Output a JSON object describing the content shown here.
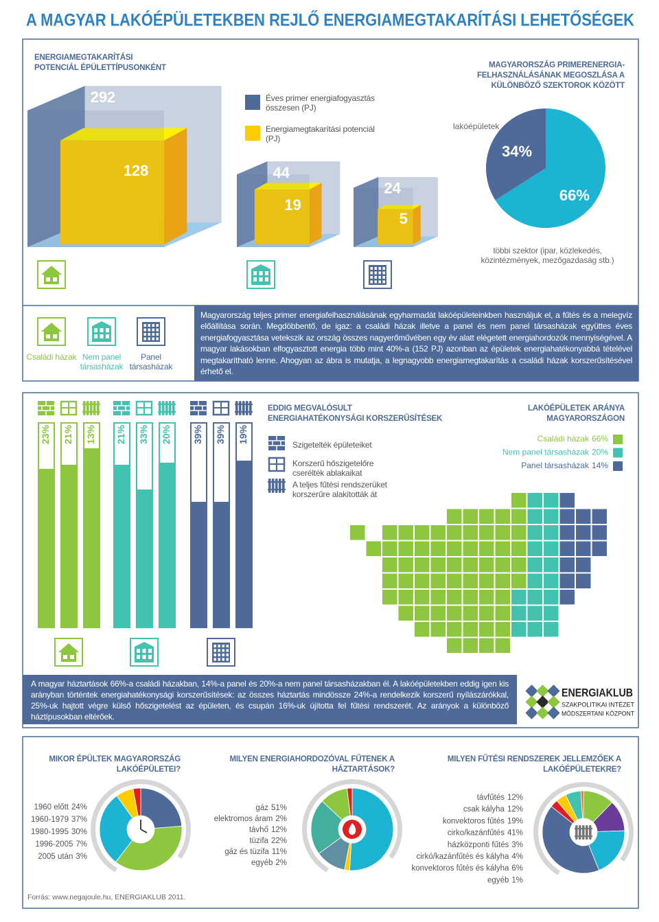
{
  "title": "A MAGYAR LAKÓÉPÜLETEKBEN REJLŐ ENERGIAMEGTAKARÍTÁSI LEHETŐSÉGEK",
  "paragraphs": [
    "Magyarország teljes primer energiafelhasználásának egyharmadát lakóépületeinkben használjuk el, a fűtés és a melegvíz előállítása során. Megdöbbentő, de igaz: a családi házak illetve a panel és nem panel társasházak együttes éves energiafogyasztása vetekszik az ország összes nagyerőművében egy év alatt elégetett energiahordozók mennyiségével. A magyar lakásokban elfogyasztott energia több mint 40%-a (152 PJ) azonban az épületek energiahatékonyabbá tételével megtakarítható lenne. Ahogyan az ábra is mutatja, a legnagyobb energiamegtakarítás a családi házak korszerűsítésével érhető el.",
    "A magyar háztartások 66%-a családi házakban, 14%-a panel és 20%-a nem panel társasházakban él. A lakóépületekben eddig igen kis arányban történtek energiahatékonysági korszerűsítések: az összes háztartás mindössze 24%-a rendelkezik korszerű nyílászárókkal, 25%-uk hajtott végre külső hőszigetelést az épületen, és csupán 16%-uk újította fel fűtési rendszerét. Az arányok a különböző háztípusokban eltérőek."
  ],
  "logo": {
    "name": "ENERGIAKLUB",
    "lines": [
      "SZAKPOLITIKAI INTÉZET",
      "MÓDSZERTANI KÖZPONT"
    ]
  },
  "source": "Forrás: www.negajoule.hu, ENERGIAKLUB 2011.",
  "chart_data": [
    {
      "type": "cube",
      "title": "ENERGIAMEGTAKARÍTÁSI POTENCIÁL ÉPÜLETTÍPUSONKÉNT",
      "categories": [
        "Családi házak",
        "Nem panel társasházak",
        "Panel társasházak"
      ],
      "category_colors": [
        "#8dc63f",
        "#43c2b0",
        "#4d6a99"
      ],
      "series": [
        {
          "name": "Éves primer energiafogyasztás összesen (PJ)",
          "color": "#4d6a99",
          "values": [
            292,
            44,
            24
          ]
        },
        {
          "name": "Energiamegtakarítási potenciál (PJ)",
          "color": "#ffcc00",
          "values": [
            128,
            19,
            5
          ]
        }
      ]
    },
    {
      "type": "pie",
      "title": "MAGYARORSZÁG PRIMERENERGIA-FELHASZNÁLÁSÁNAK MEGOSZLÁSA A KÜLÖNBÖZŐ SZEKTOROK KÖZÖTT",
      "categories": [
        "lakóépületek",
        "többi szektor (ipar, közlekedés, közintézmények, mezőgazdaság stb.)"
      ],
      "values": [
        34,
        66
      ],
      "value_labels": [
        "34%",
        "66%"
      ],
      "colors": [
        "#4d6a99",
        "#1db4d4"
      ]
    },
    {
      "type": "bar",
      "title": "EDDIG MEGVALÓSULT ENERGIAHATÉKONYSÁGI KORSZERŰSÍTÉSEK",
      "categories": [
        "Szigetelték épületeiket",
        "Korszerű hőszigetelőre cserélték ablakaikat",
        "A teljes fűtési rendszerüket korszerűre alakították át"
      ],
      "series": [
        {
          "color": "#8dc63f",
          "values": [
            23,
            21,
            13
          ],
          "value_labels": [
            "23%",
            "21%",
            "13%"
          ]
        },
        {
          "color": "#43c2b0",
          "values": [
            21,
            33,
            20
          ],
          "value_labels": [
            "21%",
            "33%",
            "20%"
          ]
        },
        {
          "color": "#4d6a99",
          "values": [
            39,
            39,
            19
          ],
          "value_labels": [
            "39%",
            "39%",
            "19%"
          ]
        }
      ],
      "ylim": [
        0,
        100
      ]
    },
    {
      "type": "waffle",
      "title": "LAKÓÉPÜLETEK ARÁNYA MAGYARORSZÁGON",
      "categories": [
        "Családi házak",
        "Nem panel társasházak",
        "Panel társasházak"
      ],
      "values": [
        66,
        20,
        14
      ],
      "value_labels": [
        "66%",
        "20%",
        "14%"
      ],
      "colors": [
        "#8dc63f",
        "#43c2b0",
        "#4d6a99"
      ]
    },
    {
      "type": "donut",
      "title": "MIKOR ÉPÜLTEK MAGYARORSZÁG LAKÓÉPÜLETEI?",
      "categories": [
        "1960 előtt",
        "1960-1979",
        "1980-1995",
        "1996-2005",
        "2005 után"
      ],
      "values": [
        24,
        37,
        30,
        7,
        3
      ],
      "value_labels": [
        "24%",
        "37%",
        "30%",
        "7%",
        "3%"
      ],
      "colors": [
        "#4d6a99",
        "#8dc63f",
        "#1db4d4",
        "#ffcc00",
        "#e02020"
      ]
    },
    {
      "type": "donut",
      "title": "MILYEN ENERGIAHORDOZÓVAL FŰTENEK A HÁZTARTÁSOK?",
      "categories": [
        "gáz",
        "elektromos áram",
        "távhő",
        "tüzifa",
        "gáz és tüzifa",
        "egyéb"
      ],
      "values": [
        51,
        2,
        12,
        22,
        11,
        2
      ],
      "value_labels": [
        "51%",
        "2%",
        "12%",
        "22%",
        "11%",
        "2%"
      ],
      "colors": [
        "#1db4d4",
        "#ffcc00",
        "#5f8fa3",
        "#43b09e",
        "#8dc63f",
        "#e02020"
      ]
    },
    {
      "type": "donut",
      "title": "MILYEN FŰTÉSI RENDSZEREK JELLEMZŐEK A LAKÓÉPÜLETEKRE?",
      "categories": [
        "távfűtés",
        "csak kályha",
        "konvektoros fűtés",
        "cirko/kazánfűtés",
        "házközponti fűtés",
        "cirkó/kazánfűtés és kályha",
        "konvektoros fűtés és kályha",
        "egyéb"
      ],
      "values": [
        12,
        12,
        19,
        41,
        3,
        4,
        6,
        1
      ],
      "value_labels": [
        "12%",
        "12%",
        "19%",
        "41%",
        "3%",
        "4%",
        "6%",
        "1%"
      ],
      "colors": [
        "#8dc63f",
        "#6a3d9a",
        "#1db4d4",
        "#4d6a99",
        "#e02020",
        "#ffcc00",
        "#43c2b0",
        "#f07020"
      ]
    }
  ]
}
